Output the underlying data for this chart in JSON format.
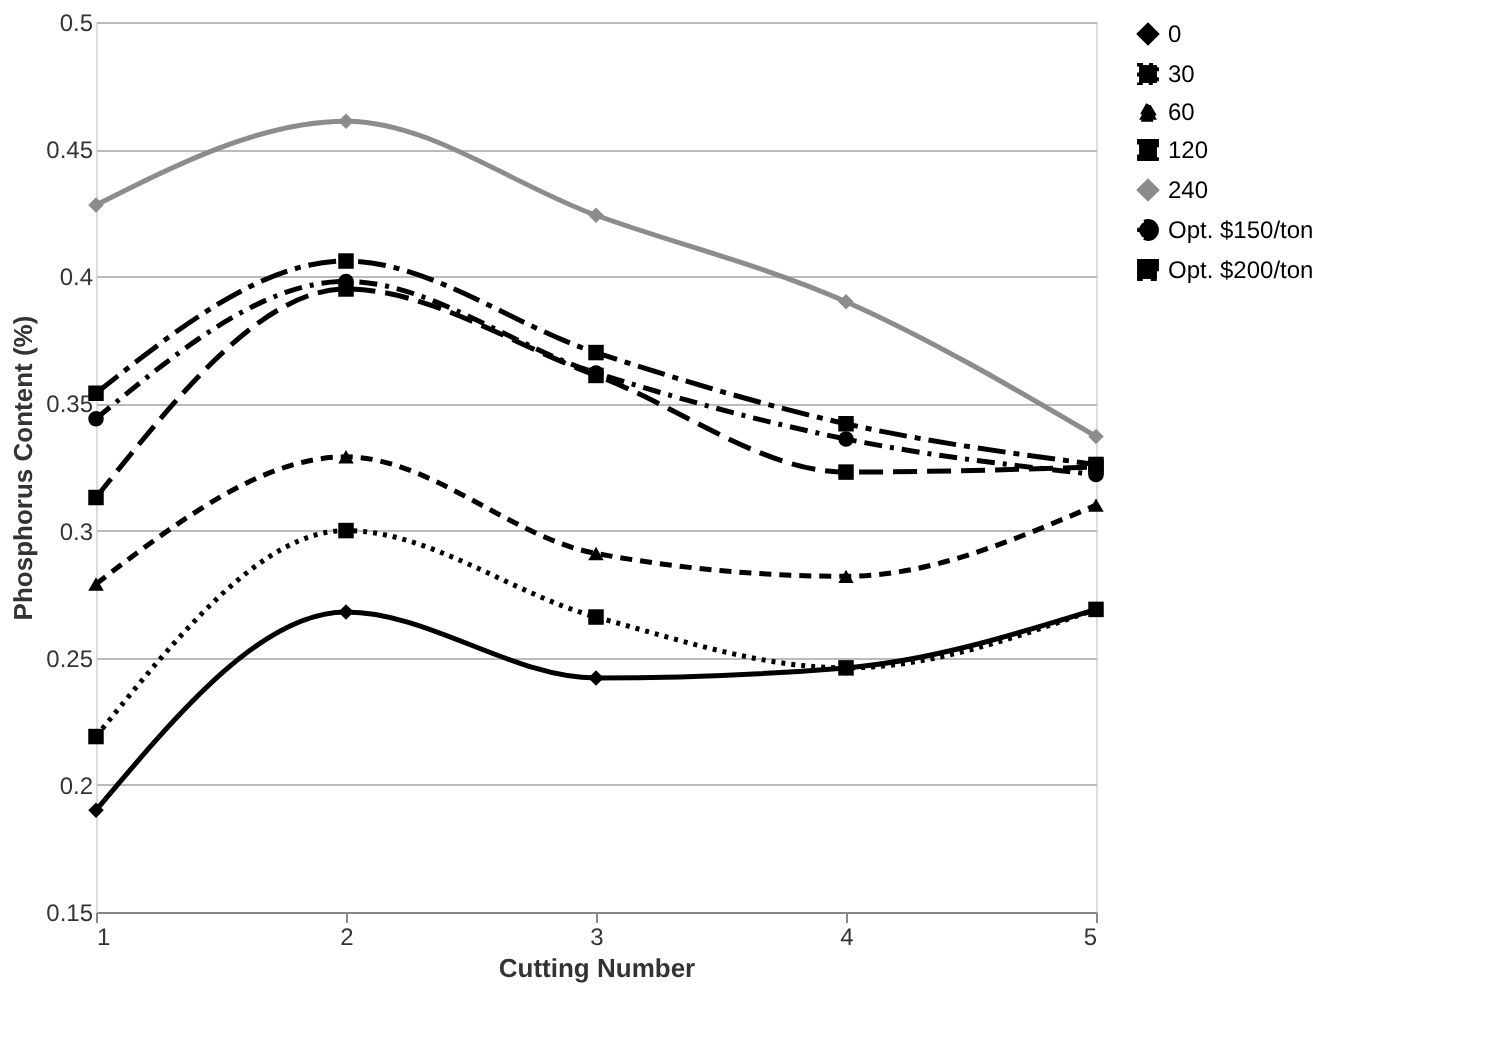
{
  "chart_data": {
    "type": "line",
    "xlabel": "Cutting Number",
    "ylabel": "Phosphorus Content (%)",
    "x": [
      1,
      2,
      3,
      4,
      5
    ],
    "xlim": [
      1,
      5
    ],
    "xticks": [
      1,
      2,
      3,
      4,
      5
    ],
    "ylim": [
      0.15,
      0.5
    ],
    "yticks": [
      0.15,
      0.2,
      0.25,
      0.3,
      0.35,
      0.4,
      0.45,
      0.5
    ],
    "grid": "y",
    "legend": "right",
    "series": [
      {
        "name": "0",
        "color": "#000000",
        "marker": "diamond",
        "line_style": "solid",
        "values": [
          0.19,
          0.268,
          0.242,
          0.246,
          0.269
        ]
      },
      {
        "name": "30",
        "color": "#000000",
        "marker": "square",
        "line_style": "dotted",
        "values": [
          0.219,
          0.3,
          0.266,
          0.246,
          0.269
        ]
      },
      {
        "name": "60",
        "color": "#000000",
        "marker": "triangle",
        "line_style": "dashed",
        "values": [
          0.279,
          0.329,
          0.291,
          0.282,
          0.31
        ]
      },
      {
        "name": "120",
        "color": "#000000",
        "marker": "square",
        "line_style": "dashed",
        "values": [
          0.313,
          0.395,
          0.361,
          0.323,
          0.325
        ]
      },
      {
        "name": "240",
        "color": "#8c8c8c",
        "marker": "diamond",
        "line_style": "solid",
        "values": [
          0.428,
          0.461,
          0.424,
          0.39,
          0.337
        ]
      },
      {
        "name": "Opt. $150/ton",
        "color": "#000000",
        "marker": "circle",
        "line_style": "dashed",
        "values": [
          0.344,
          0.398,
          0.362,
          0.336,
          0.322
        ]
      },
      {
        "name": "Opt. $200/ton",
        "color": "#000000",
        "marker": "square",
        "line_style": "dashed",
        "values": [
          0.354,
          0.406,
          0.37,
          0.342,
          0.326
        ]
      }
    ]
  }
}
